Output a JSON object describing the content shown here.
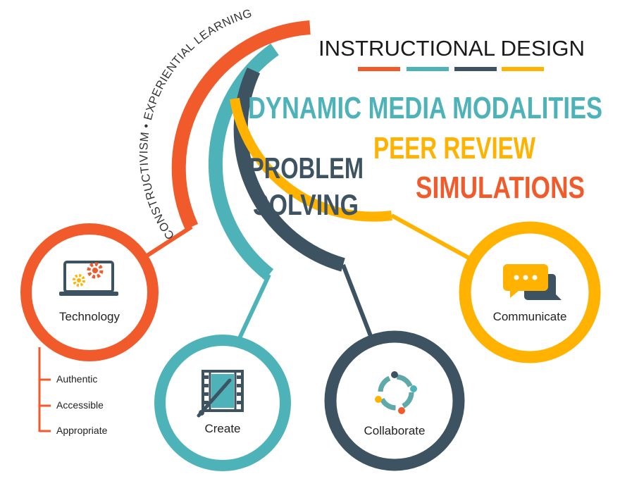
{
  "title": "INSTRUCTIONAL DESIGN",
  "arc_text": "CONSTRUCTIVISM • EXPERIENTIAL LEARNING",
  "keywords": {
    "dynamic_media": "DYNAMIC MEDIA MODALITIES",
    "peer_review": "PEER REVIEW",
    "simulations": "SIMULATIONS",
    "problem": "PROBLEM",
    "solving": "SOLVING"
  },
  "nodes": {
    "technology": {
      "label": "Technology",
      "icon": "laptop-gears-icon",
      "sub_items": [
        "Authentic",
        "Accessible",
        "Appropriate"
      ]
    },
    "create": {
      "label": "Create",
      "icon": "film-brush-icon"
    },
    "collaborate": {
      "label": "Collaborate",
      "icon": "people-circle-icon"
    },
    "communicate": {
      "label": "Communicate",
      "icon": "chat-bubbles-icon"
    }
  },
  "colors": {
    "orange": "#F15A2B",
    "teal": "#4DB3B9",
    "slate": "#3D5362",
    "yellow": "#FFB300"
  }
}
